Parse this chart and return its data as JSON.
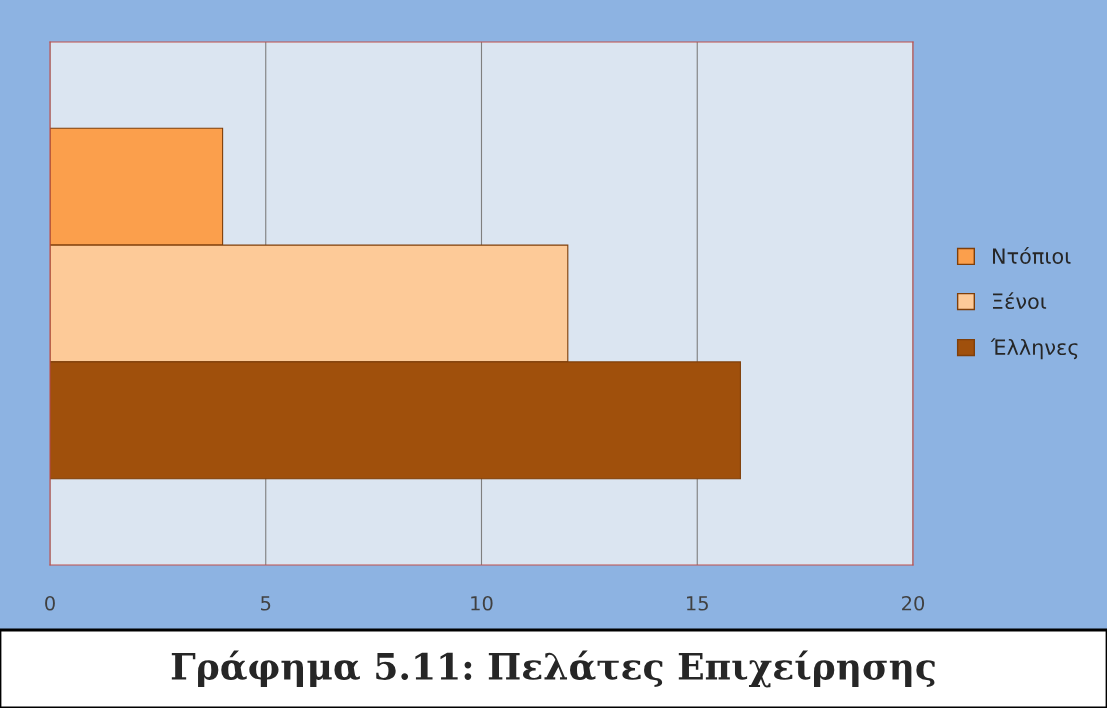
{
  "chart_data": {
    "type": "bar",
    "orientation": "horizontal",
    "title": "Γράφημα 5.11: Πελάτες Επιχείρησης",
    "categories": [
      null
    ],
    "series": [
      {
        "name": "Ντόπιοι",
        "color": "#fb9f4c",
        "values": [
          4
        ]
      },
      {
        "name": "Ξένοι",
        "color": "#fdca98",
        "values": [
          12
        ]
      },
      {
        "name": "Έλληνες",
        "color": "#a0500c",
        "values": [
          16
        ]
      }
    ],
    "xlim": [
      0,
      20
    ],
    "xticks": [
      0,
      5,
      10,
      15,
      20
    ],
    "grid": "x",
    "legend": "right",
    "tick_labels": "x"
  }
}
